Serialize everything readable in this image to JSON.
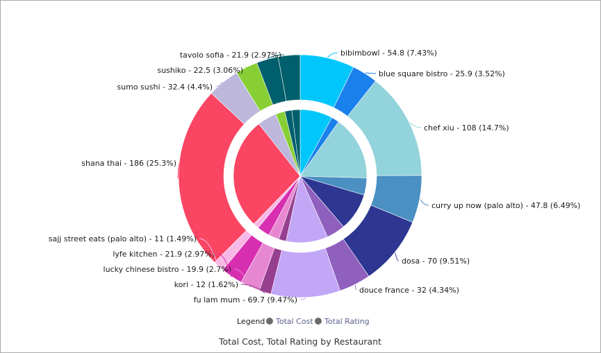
{
  "chart_data": {
    "type": "pie",
    "title": "Total Cost, Total Rating by Restaurant",
    "legend": {
      "label": "Legend",
      "position": "bottom",
      "entries": [
        "Total Cost",
        "Total Rating"
      ]
    },
    "series": [
      {
        "name": "Total Cost",
        "ring": "outer",
        "values": [
          54.8,
          25.9,
          108,
          47.8,
          70,
          32,
          69.7,
          12,
          19.9,
          21.9,
          11,
          186,
          32.4,
          22.5,
          21.9,
          22.0
        ]
      },
      {
        "name": "Total Rating",
        "ring": "inner",
        "values": [
          7.4,
          1.8,
          14.7,
          3.9,
          8.6,
          4.3,
          9.5,
          1.7,
          2.4,
          2.9,
          1.3,
          25.5,
          4.4,
          2.1,
          1.6,
          1.9
        ]
      }
    ],
    "categories": [
      {
        "name": "bibimbowl",
        "label": "bibimbowl - 54.8 (7.43%)",
        "color": "#00c7fb"
      },
      {
        "name": "blue square bistro",
        "label": "blue square bistro - 25.9 (3.52%)",
        "color": "#1a80ec"
      },
      {
        "name": "chef xiu",
        "label": "chef xiu - 108 (14.7%)",
        "color": "#93d3db"
      },
      {
        "name": "curry up now (palo alto)",
        "label": "curry up now (palo alto) - 47.8 (6.49%)",
        "color": "#4a90c2"
      },
      {
        "name": "dosa",
        "label": "dosa - 70 (9.51%)",
        "color": "#2d3690"
      },
      {
        "name": "douce france",
        "label": "douce france - 32 (4.34%)",
        "color": "#8f60bd"
      },
      {
        "name": "fu lam mum",
        "label": "fu lam mum - 69.7 (9.47%)",
        "color": "#c3a7f7"
      },
      {
        "name": "kori",
        "label": "kori - 12 (1.62%)",
        "color": "#963f8f"
      },
      {
        "name": "lucky chinese bistro",
        "label": "lucky chinese bistro - 19.9 (2.7%)",
        "color": "#e787d1"
      },
      {
        "name": "lyfe kitchen",
        "label": "lyfe kitchen - 21.9 (2.97%)",
        "color": "#d82fb0"
      },
      {
        "name": "sajj street eats (palo alto)",
        "label": "sajj street eats (palo alto) - 11 (1.49%)",
        "color": "#f8b8e5"
      },
      {
        "name": "shana thai",
        "label": "shana thai - 186 (25.3%)",
        "color": "#fa4563"
      },
      {
        "name": "sumo sushi",
        "label": "sumo sushi - 32.4 (4.4%)",
        "color": "#bdb7dc"
      },
      {
        "name": "sushiko",
        "label": "sushiko - 22.5 (3.06%)",
        "color": "#87cf34"
      },
      {
        "name": "tavolo sofia",
        "label": "tavolo sofia - 21.9 (2.97%)",
        "color": "#005f6c"
      },
      {
        "name": "",
        "label": "",
        "color": "#005f6c"
      }
    ]
  },
  "colors": {
    "legend_marker": "#6b6b6b",
    "legend_text": "#5a5f8a",
    "border": "#a9a9a9"
  }
}
